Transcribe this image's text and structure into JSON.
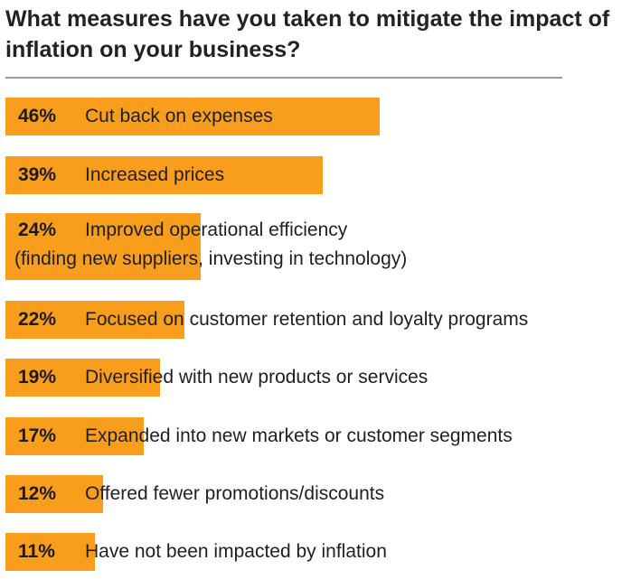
{
  "chart_data": {
    "type": "bar",
    "orientation": "horizontal",
    "title": "What measures have you taken to mitigate the impact of inflation on your business?",
    "value_format": "percent",
    "bar_color": "#f99d1c",
    "xlim": [
      0,
      100
    ],
    "series": [
      {
        "values": [
          46,
          39,
          24,
          22,
          19,
          17,
          12,
          11
        ]
      }
    ],
    "bars": [
      {
        "value": 46,
        "value_label": "46%",
        "label": "Cut back on expenses",
        "label_line2": ""
      },
      {
        "value": 39,
        "value_label": "39%",
        "label": "Increased prices",
        "label_line2": ""
      },
      {
        "value": 24,
        "value_label": "24%",
        "label": "Improved operational efficiency",
        "label_line2": "(finding new suppliers, investing in technology)"
      },
      {
        "value": 22,
        "value_label": "22%",
        "label": "Focused on customer retention and loyalty programs",
        "label_line2": ""
      },
      {
        "value": 19,
        "value_label": "19%",
        "label": "Diversified with new products or services",
        "label_line2": ""
      },
      {
        "value": 17,
        "value_label": "17%",
        "label": "Expanded into new markets or customer segments",
        "label_line2": ""
      },
      {
        "value": 12,
        "value_label": "12%",
        "label": "Offered fewer promotions/discounts",
        "label_line2": ""
      },
      {
        "value": 11,
        "value_label": "11%",
        "label": "Have not been impacted by inflation",
        "label_line2": ""
      }
    ]
  }
}
